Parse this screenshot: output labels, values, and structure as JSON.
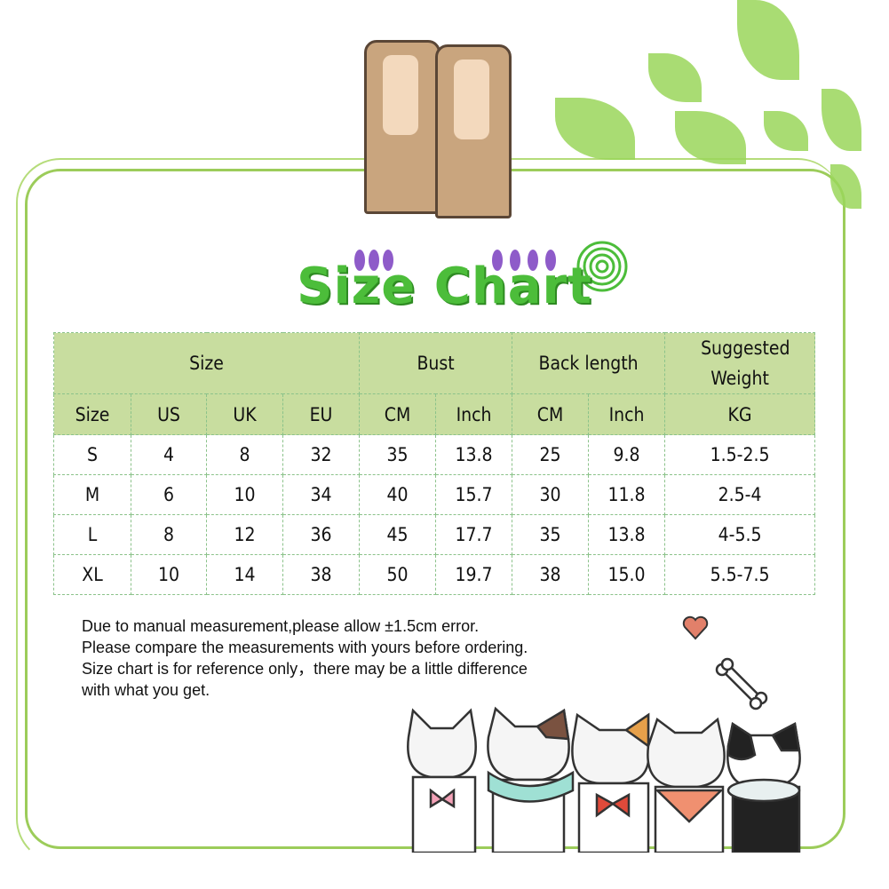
{
  "title": "Size Chart",
  "table": {
    "group_headers": [
      "Size",
      "Bust",
      "Back length",
      "Suggested Weight"
    ],
    "sub_headers": [
      "Size",
      "US",
      "UK",
      "EU",
      "CM",
      "Inch",
      "CM",
      "Inch",
      "KG"
    ],
    "rows": [
      [
        "S",
        "4",
        "8",
        "32",
        "35",
        "13.8",
        "25",
        "9.8",
        "1.5-2.5"
      ],
      [
        "M",
        "6",
        "10",
        "34",
        "40",
        "15.7",
        "30",
        "11.8",
        "2.5-4"
      ],
      [
        "L",
        "8",
        "12",
        "36",
        "45",
        "17.7",
        "35",
        "13.8",
        "4-5.5"
      ],
      [
        "XL",
        "10",
        "14",
        "38",
        "50",
        "19.7",
        "38",
        "15.0",
        "5.5-7.5"
      ]
    ]
  },
  "notes": [
    "Due to manual measurement,please allow ±1.5cm error.",
    "Please compare the measurements with yours before ordering.",
    "Size chart is for reference only，there may be a little difference",
    "with what you get."
  ],
  "colors": {
    "header_bg": "#c8dd9f",
    "title": "#4cbd3a",
    "frame": "#9ccc5a"
  }
}
